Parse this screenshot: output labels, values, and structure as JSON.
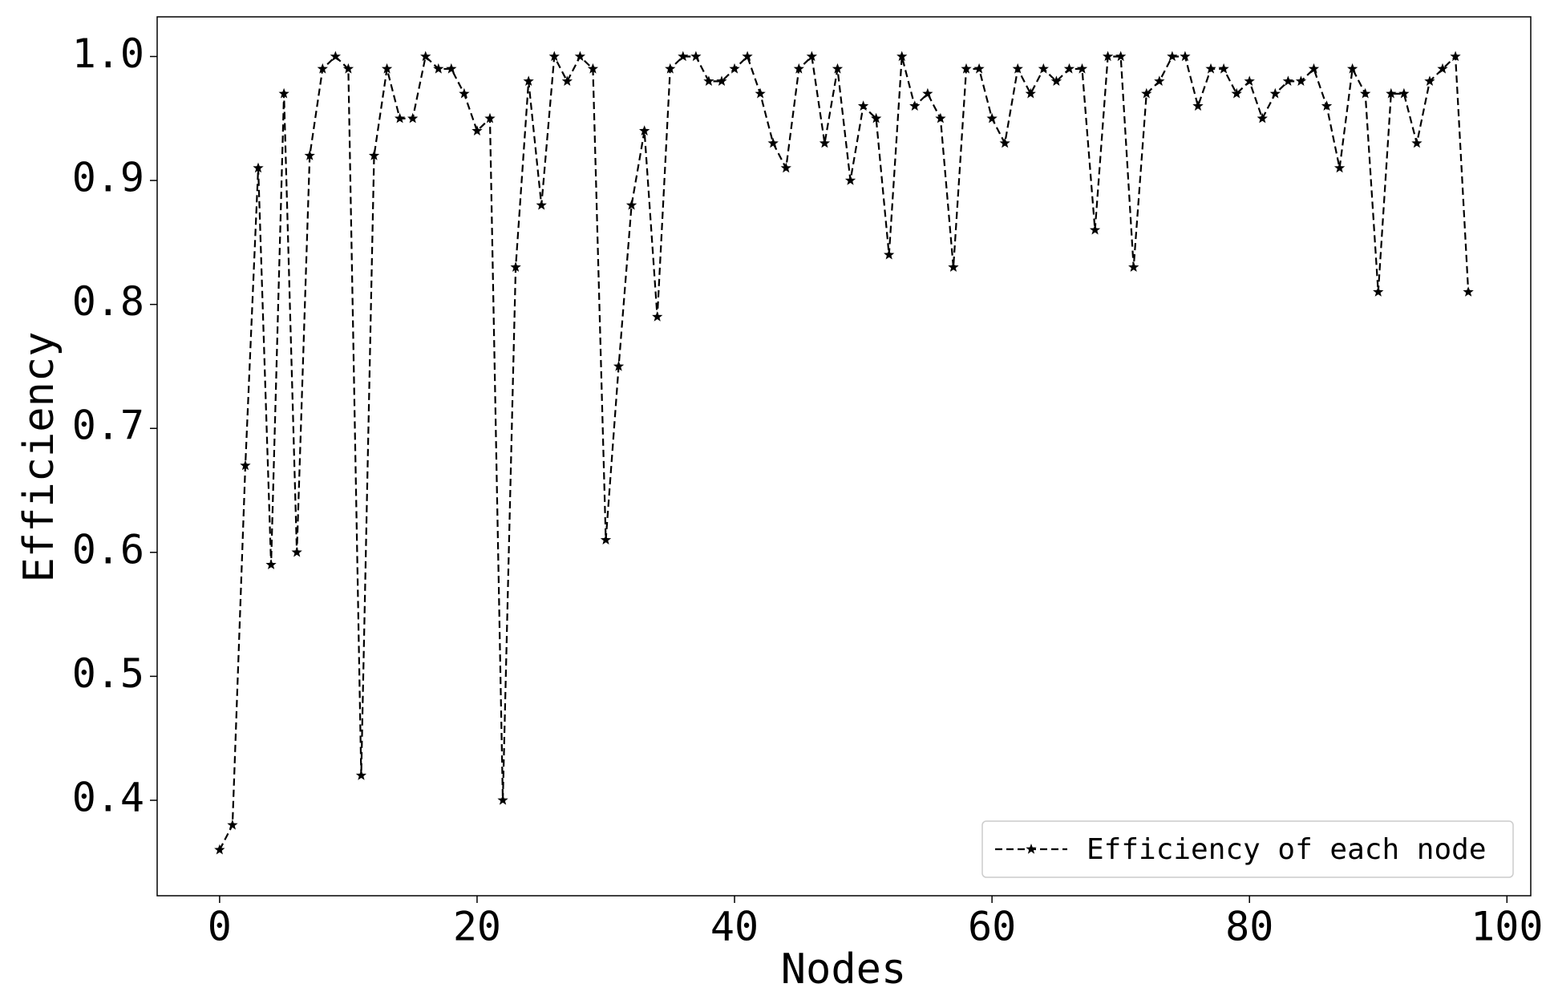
{
  "chart_data": {
    "type": "line",
    "xlabel": "Nodes",
    "ylabel": "Efficiency",
    "x": [
      0,
      1,
      2,
      3,
      4,
      5,
      6,
      7,
      8,
      9,
      10,
      11,
      12,
      13,
      14,
      15,
      16,
      17,
      18,
      19,
      20,
      21,
      22,
      23,
      24,
      25,
      26,
      27,
      28,
      29,
      30,
      31,
      32,
      33,
      34,
      35,
      36,
      37,
      38,
      39,
      40,
      41,
      42,
      43,
      44,
      45,
      46,
      47,
      48,
      49,
      50,
      51,
      52,
      53,
      54,
      55,
      56,
      57,
      58,
      59,
      60,
      61,
      62,
      63,
      64,
      65,
      66,
      67,
      68,
      69,
      70,
      71,
      72,
      73,
      74,
      75,
      76,
      77,
      78,
      79,
      80,
      81,
      82,
      83,
      84,
      85,
      86,
      87,
      88,
      89,
      90,
      91,
      92,
      93,
      94,
      95,
      96,
      97
    ],
    "series": [
      {
        "name": "Efficiency of each node",
        "color": "#000000",
        "linestyle": "dashed",
        "marker": "star",
        "values": [
          0.36,
          0.38,
          0.67,
          0.91,
          0.59,
          0.97,
          0.6,
          0.92,
          0.99,
          1.0,
          0.99,
          0.42,
          0.92,
          0.99,
          0.95,
          0.95,
          1.0,
          0.99,
          0.99,
          0.97,
          0.94,
          0.95,
          0.4,
          0.83,
          0.98,
          0.88,
          1.0,
          0.98,
          1.0,
          0.99,
          0.61,
          0.75,
          0.88,
          0.94,
          0.79,
          0.99,
          1.0,
          1.0,
          0.98,
          0.98,
          0.99,
          1.0,
          0.97,
          0.93,
          0.91,
          0.99,
          1.0,
          0.93,
          0.99,
          0.9,
          0.96,
          0.95,
          0.84,
          1.0,
          0.96,
          0.97,
          0.95,
          0.83,
          0.99,
          0.99,
          0.95,
          0.93,
          0.99,
          0.97,
          0.99,
          0.98,
          0.99,
          0.99,
          0.86,
          1.0,
          1.0,
          0.83,
          0.97,
          0.98,
          1.0,
          1.0,
          0.96,
          0.99,
          0.99,
          0.97,
          0.98,
          0.95,
          0.97,
          0.98,
          0.98,
          0.99,
          0.96,
          0.91,
          0.99,
          0.97,
          0.81,
          0.97,
          0.97,
          0.93,
          0.98,
          0.99,
          1.0,
          0.81
        ]
      }
    ],
    "xlim": [
      -4.85,
      101.85
    ],
    "ylim": [
      0.323,
      1.032
    ],
    "xticks": [
      0,
      20,
      40,
      60,
      80,
      100
    ],
    "yticks": [
      0.4,
      0.5,
      0.6,
      0.7,
      0.8,
      0.9,
      {
        "value": 1,
        "label": "1.0"
      }
    ],
    "legend": "lower right"
  }
}
